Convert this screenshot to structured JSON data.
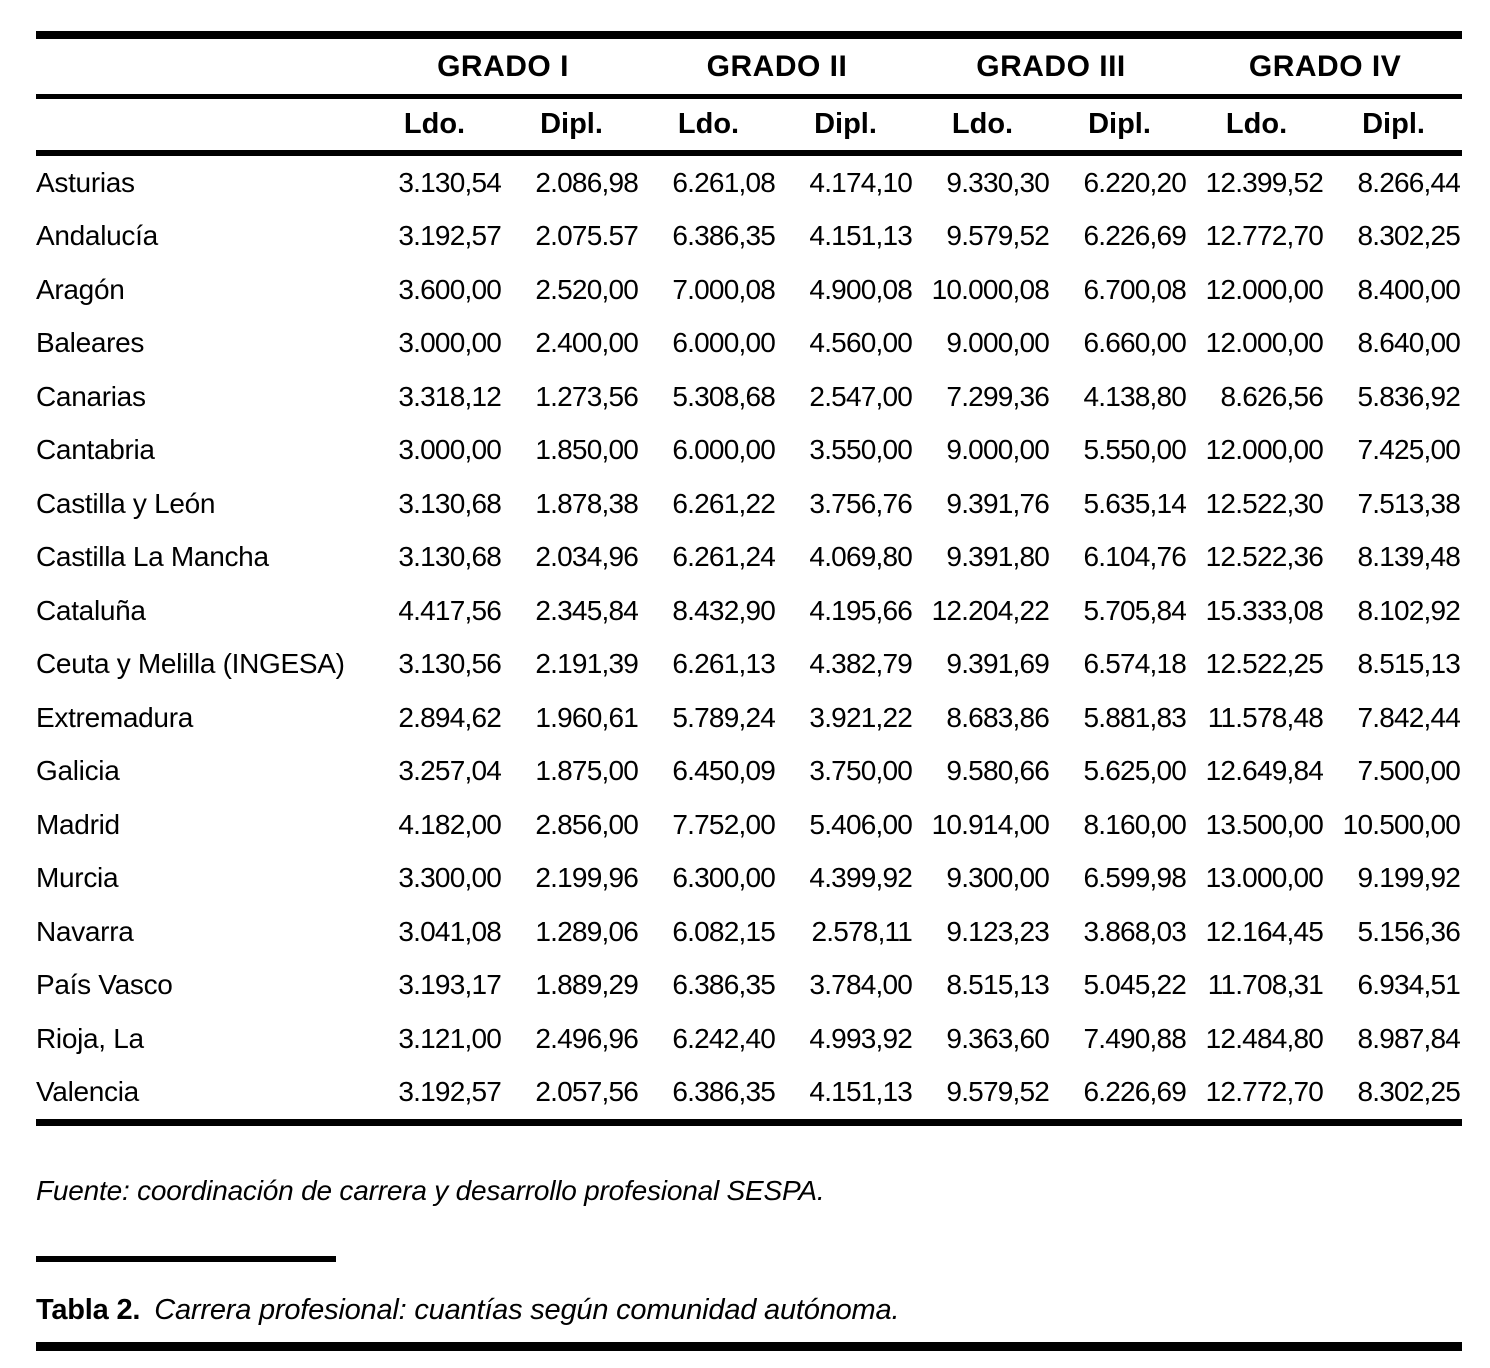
{
  "colors": {
    "text": "#000000",
    "background": "#ffffff",
    "rule": "#000000"
  },
  "table": {
    "group_headers": [
      "GRADO I",
      "GRADO II",
      "GRADO III",
      "GRADO IV"
    ],
    "sub_headers": [
      "Ldo.",
      "Dipl.",
      "Ldo.",
      "Dipl.",
      "Ldo.",
      "Dipl.",
      "Ldo.",
      "Dipl."
    ],
    "rows": [
      {
        "region": "Asturias",
        "values": [
          "3.130,54",
          "2.086,98",
          "6.261,08",
          "4.174,10",
          "9.330,30",
          "6.220,20",
          "12.399,52",
          "8.266,44"
        ]
      },
      {
        "region": "Andalucía",
        "values": [
          "3.192,57",
          "2.075.57",
          "6.386,35",
          "4.151,13",
          "9.579,52",
          "6.226,69",
          "12.772,70",
          "8.302,25"
        ]
      },
      {
        "region": "Aragón",
        "values": [
          "3.600,00",
          "2.520,00",
          "7.000,08",
          "4.900,08",
          "10.000,08",
          "6.700,08",
          "12.000,00",
          "8.400,00"
        ]
      },
      {
        "region": "Baleares",
        "values": [
          "3.000,00",
          "2.400,00",
          "6.000,00",
          "4.560,00",
          "9.000,00",
          "6.660,00",
          "12.000,00",
          "8.640,00"
        ]
      },
      {
        "region": "Canarias",
        "values": [
          "3.318,12",
          "1.273,56",
          "5.308,68",
          "2.547,00",
          "7.299,36",
          "4.138,80",
          "8.626,56",
          "5.836,92"
        ]
      },
      {
        "region": "Cantabria",
        "values": [
          "3.000,00",
          "1.850,00",
          "6.000,00",
          "3.550,00",
          "9.000,00",
          "5.550,00",
          "12.000,00",
          "7.425,00"
        ]
      },
      {
        "region": "Castilla y León",
        "values": [
          "3.130,68",
          "1.878,38",
          "6.261,22",
          "3.756,76",
          "9.391,76",
          "5.635,14",
          "12.522,30",
          "7.513,38"
        ]
      },
      {
        "region": "Castilla La Mancha",
        "values": [
          "3.130,68",
          "2.034,96",
          "6.261,24",
          "4.069,80",
          "9.391,80",
          "6.104,76",
          "12.522,36",
          "8.139,48"
        ]
      },
      {
        "region": "Cataluña",
        "values": [
          "4.417,56",
          "2.345,84",
          "8.432,90",
          "4.195,66",
          "12.204,22",
          "5.705,84",
          "15.333,08",
          "8.102,92"
        ]
      },
      {
        "region": "Ceuta y Melilla (INGESA)",
        "values": [
          "3.130,56",
          "2.191,39",
          "6.261,13",
          "4.382,79",
          "9.391,69",
          "6.574,18",
          "12.522,25",
          "8.515,13"
        ]
      },
      {
        "region": "Extremadura",
        "values": [
          "2.894,62",
          "1.960,61",
          "5.789,24",
          "3.921,22",
          "8.683,86",
          "5.881,83",
          "11.578,48",
          "7.842,44"
        ]
      },
      {
        "region": "Galicia",
        "values": [
          "3.257,04",
          "1.875,00",
          "6.450,09",
          "3.750,00",
          "9.580,66",
          "5.625,00",
          "12.649,84",
          "7.500,00"
        ]
      },
      {
        "region": "Madrid",
        "values": [
          "4.182,00",
          "2.856,00",
          "7.752,00",
          "5.406,00",
          "10.914,00",
          "8.160,00",
          "13.500,00",
          "10.500,00"
        ]
      },
      {
        "region": "Murcia",
        "values": [
          "3.300,00",
          "2.199,96",
          "6.300,00",
          "4.399,92",
          "9.300,00",
          "6.599,98",
          "13.000,00",
          "9.199,92"
        ]
      },
      {
        "region": "Navarra",
        "values": [
          "3.041,08",
          "1.289,06",
          "6.082,15",
          "2.578,11",
          "9.123,23",
          "3.868,03",
          "12.164,45",
          "5.156,36"
        ]
      },
      {
        "region": "País Vasco",
        "values": [
          "3.193,17",
          "1.889,29",
          "6.386,35",
          "3.784,00",
          "8.515,13",
          "5.045,22",
          "11.708,31",
          "6.934,51"
        ]
      },
      {
        "region": "Rioja, La",
        "values": [
          "3.121,00",
          "2.496,96",
          "6.242,40",
          "4.993,92",
          "9.363,60",
          "7.490,88",
          "12.484,80",
          "8.987,84"
        ]
      },
      {
        "region": "Valencia",
        "values": [
          "3.192,57",
          "2.057,56",
          "6.386,35",
          "4.151,13",
          "9.579,52",
          "6.226,69",
          "12.772,70",
          "8.302,25"
        ]
      }
    ]
  },
  "source_note": "Fuente: coordinación de carrera y desarrollo profesional SESPA.",
  "caption": {
    "label": "Tabla 2.",
    "text": "Carrera profesional: cuantías según comunidad autónoma."
  }
}
